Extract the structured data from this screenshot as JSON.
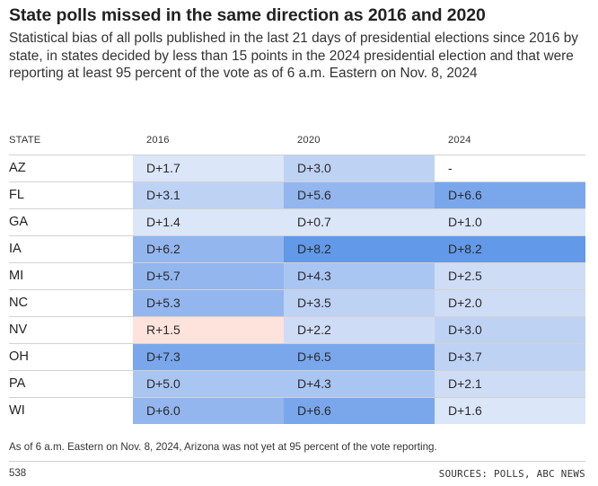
{
  "header": {
    "title": "State polls missed in the same direction as 2016 and 2020",
    "subtitle": "Statistical bias of all polls published in the last 21 days of presidential elections since 2016 by state, in states decided by less than 15 points in the 2024 presidential election and that were reporting at least 95 percent of the vote as of 6 a.m. Eastern on Nov. 8, 2024"
  },
  "colors": {
    "dem_scale": [
      "#e6eefa",
      "#dbe6f8",
      "#cfdcf6",
      "#bed2f4",
      "#a9c5f2",
      "#93b6ee",
      "#7aa7ec",
      "#6299e8"
    ],
    "rep": "#fde3dc",
    "missing": "#ffffff"
  },
  "chart_data": {
    "type": "table",
    "columns": [
      "STATE",
      "2016",
      "2020",
      "2024"
    ],
    "rows": [
      {
        "state": "AZ",
        "labels": [
          "D+1.7",
          "D+3.0",
          "-"
        ],
        "values": [
          1.7,
          3.0,
          null
        ]
      },
      {
        "state": "FL",
        "labels": [
          "D+3.1",
          "D+5.6",
          "D+6.6"
        ],
        "values": [
          3.1,
          5.6,
          6.6
        ]
      },
      {
        "state": "GA",
        "labels": [
          "D+1.4",
          "D+0.7",
          "D+1.0"
        ],
        "values": [
          1.4,
          0.7,
          1.0
        ]
      },
      {
        "state": "IA",
        "labels": [
          "D+6.2",
          "D+8.2",
          "D+8.2"
        ],
        "values": [
          6.2,
          8.2,
          8.2
        ]
      },
      {
        "state": "MI",
        "labels": [
          "D+5.7",
          "D+4.3",
          "D+2.5"
        ],
        "values": [
          5.7,
          4.3,
          2.5
        ]
      },
      {
        "state": "NC",
        "labels": [
          "D+5.3",
          "D+3.5",
          "D+2.0"
        ],
        "values": [
          5.3,
          3.5,
          2.0
        ]
      },
      {
        "state": "NV",
        "labels": [
          "R+1.5",
          "D+2.2",
          "D+3.0"
        ],
        "values": [
          -1.5,
          2.2,
          3.0
        ]
      },
      {
        "state": "OH",
        "labels": [
          "D+7.3",
          "D+6.5",
          "D+3.7"
        ],
        "values": [
          7.3,
          6.5,
          3.7
        ]
      },
      {
        "state": "PA",
        "labels": [
          "D+5.0",
          "D+4.3",
          "D+2.1"
        ],
        "values": [
          5.0,
          4.3,
          2.1
        ]
      },
      {
        "state": "WI",
        "labels": [
          "D+6.0",
          "D+6.6",
          "D+1.6"
        ],
        "values": [
          6.0,
          6.6,
          1.6
        ]
      }
    ]
  },
  "footer": {
    "note": "As of 6 a.m. Eastern on Nov. 8, 2024, Arizona was not yet at 95 percent of the vote reporting.",
    "brand": "538",
    "sources": "SOURCES: POLLS, ABC NEWS"
  }
}
